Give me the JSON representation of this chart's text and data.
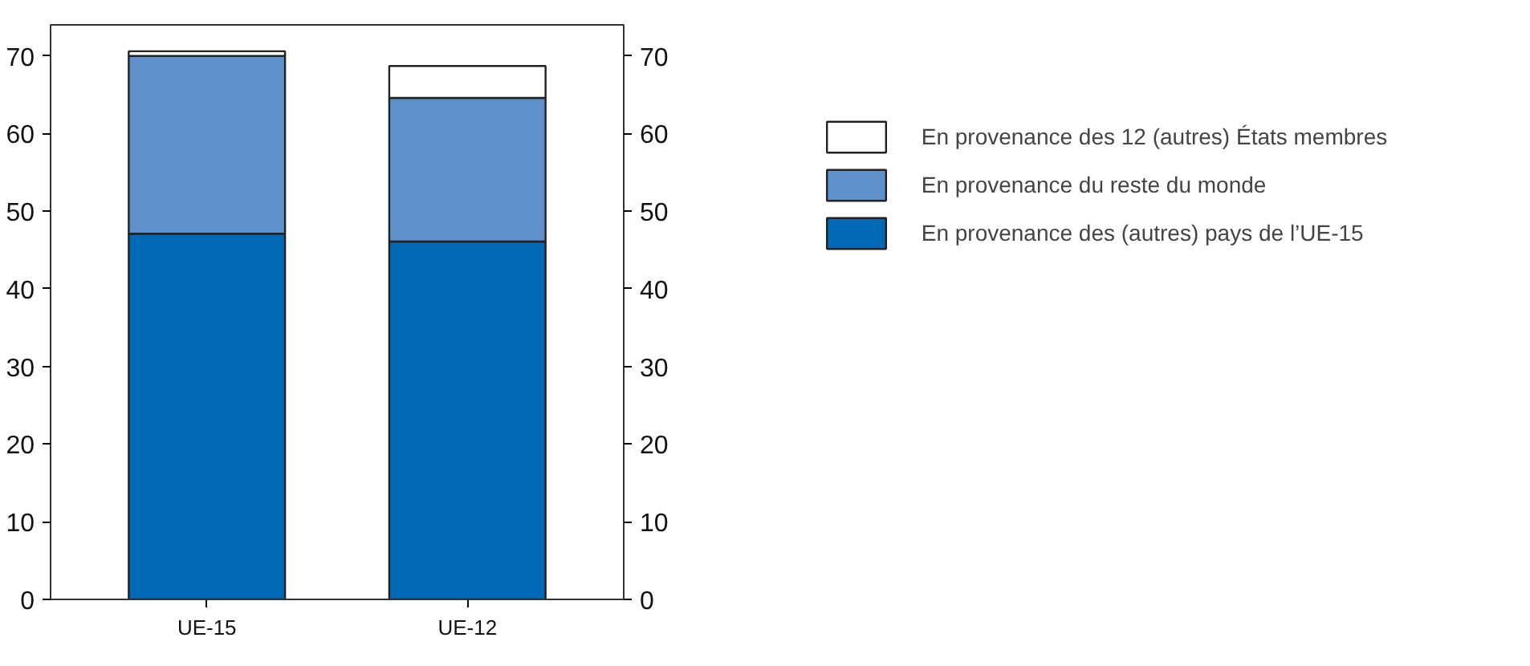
{
  "chart_data": {
    "type": "bar",
    "stacked": true,
    "categories": [
      "UE-15",
      "UE-12"
    ],
    "series": [
      {
        "name": "En provenance des (autres) pays de l’UE-15",
        "color": "#0068b4",
        "values": [
          47.1,
          46.1
        ]
      },
      {
        "name": "En provenance du reste du monde",
        "color": "#5e90ca",
        "values": [
          22.9,
          18.5
        ]
      },
      {
        "name": "En provenance des 12 (autres) États membres",
        "color": "#ffffff",
        "values": [
          0.6,
          4.1
        ]
      }
    ],
    "ylim": [
      0,
      74
    ],
    "yticks": [
      0,
      10,
      20,
      30,
      40,
      50,
      60,
      70
    ],
    "y2lim": [
      0,
      74
    ],
    "y2ticks": [
      0,
      10,
      20,
      30,
      40,
      50,
      60,
      70
    ],
    "grid": false,
    "legend": "right"
  }
}
